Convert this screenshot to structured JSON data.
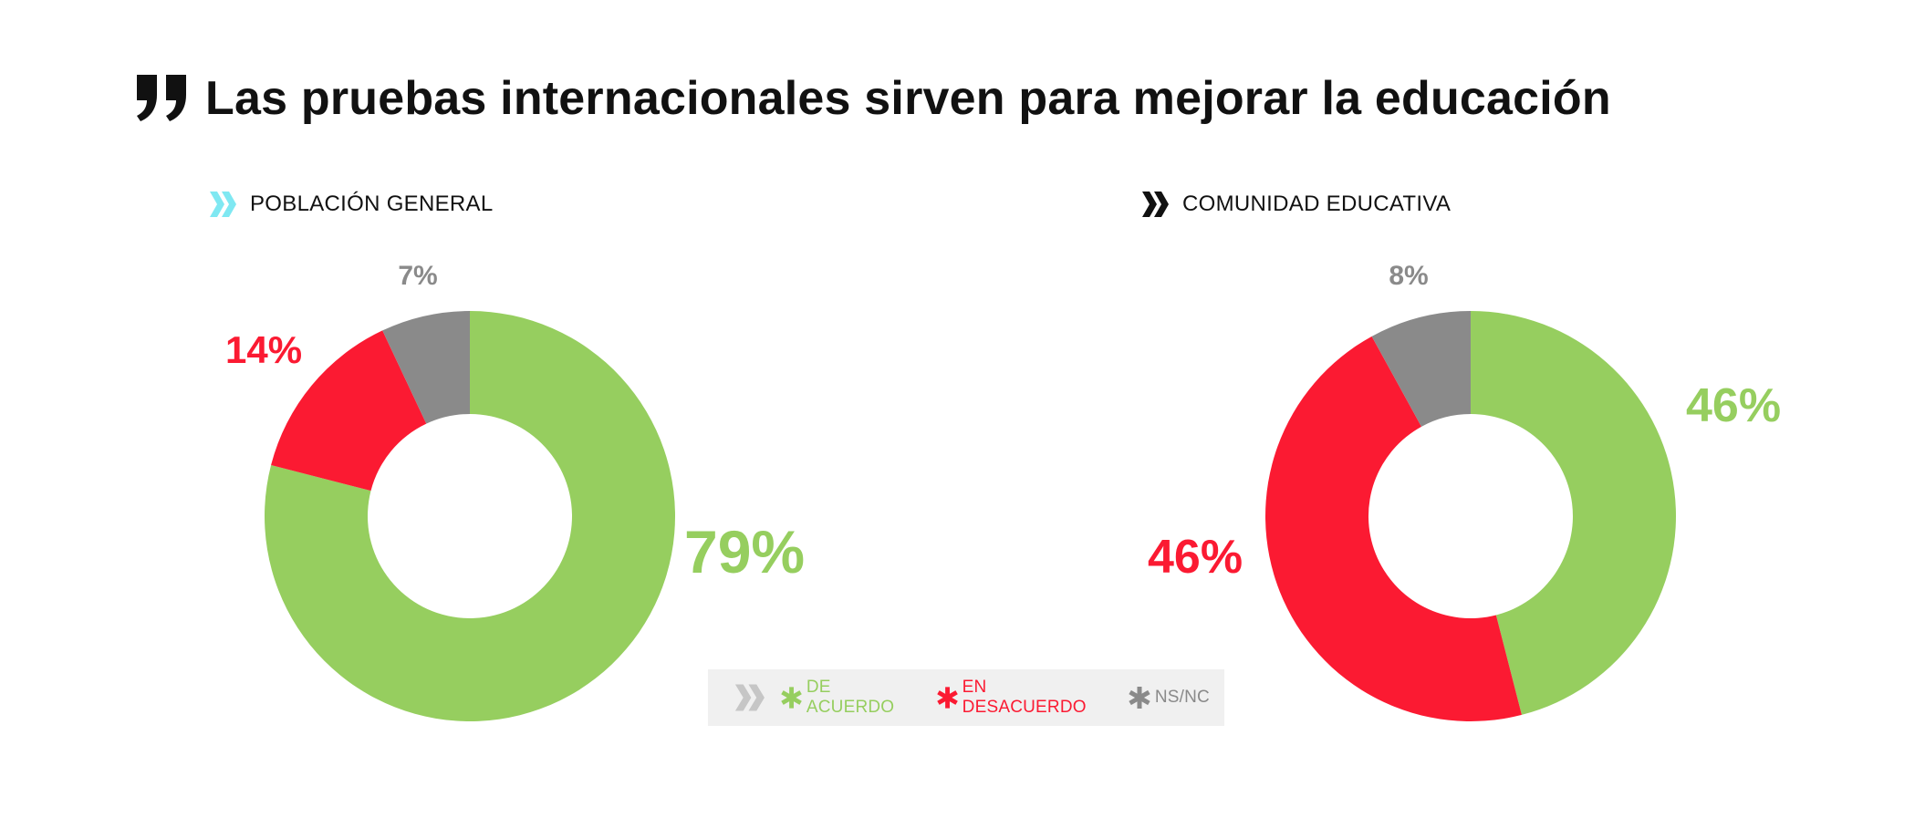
{
  "title": "Las pruebas internacionales sirven para mejorar la educación",
  "icons": {
    "title": "quote-icon",
    "section": "double-chevron-icon",
    "legend_marker": "asterisk-icon"
  },
  "colors": {
    "agree": "#96ce5f",
    "disagree": "#fb1a32",
    "nsnc": "#8a8a8a",
    "accent_cyan": "#7fe8f2",
    "accent_black": "#111111"
  },
  "chart_data": [
    {
      "type": "pie",
      "title": "POBLACIÓN GENERAL",
      "slices": [
        {
          "key": "agree",
          "label": "DE ACUERDO",
          "value": 79,
          "display": "79%"
        },
        {
          "key": "disagree",
          "label": "EN DESACUERDO",
          "value": 14,
          "display": "14%"
        },
        {
          "key": "nsnc",
          "label": "NS/NC",
          "value": 7,
          "display": "7%"
        }
      ]
    },
    {
      "type": "pie",
      "title": "COMUNIDAD EDUCATIVA",
      "slices": [
        {
          "key": "agree",
          "label": "DE ACUERDO",
          "value": 46,
          "display": "46%"
        },
        {
          "key": "disagree",
          "label": "EN DESACUERDO",
          "value": 46,
          "display": "46%"
        },
        {
          "key": "nsnc",
          "label": "NS/NC",
          "value": 8,
          "display": "8%"
        }
      ]
    }
  ],
  "legend": [
    {
      "key": "agree",
      "label": "DE ACUERDO"
    },
    {
      "key": "disagree",
      "label": "EN DESACUERDO"
    },
    {
      "key": "nsnc",
      "label": "NS/NC"
    }
  ]
}
